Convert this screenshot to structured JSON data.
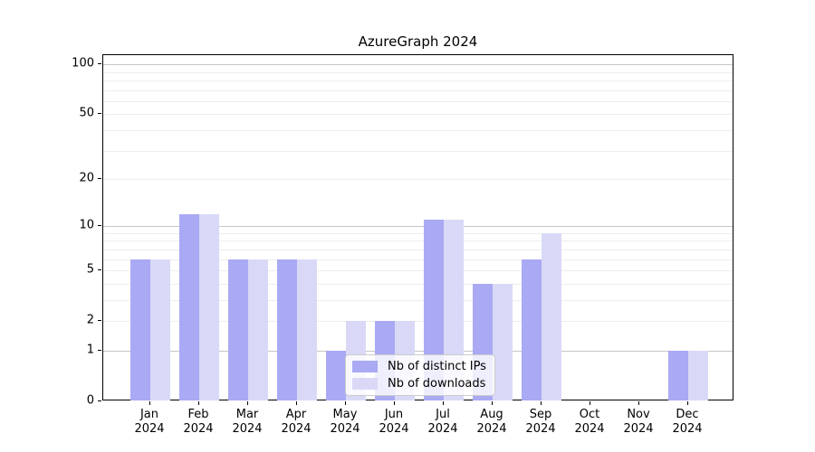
{
  "chart_data": {
    "type": "bar",
    "title": "AzureGraph 2024",
    "categories": [
      "Jan",
      "Feb",
      "Mar",
      "Apr",
      "May",
      "Jun",
      "Jul",
      "Aug",
      "Sep",
      "Oct",
      "Nov",
      "Dec"
    ],
    "category_year": "2024",
    "series": [
      {
        "name": "Nb of distinct IPs",
        "color": "#a9a9f4",
        "values": [
          6,
          12,
          6,
          6,
          1,
          2,
          11,
          4,
          6,
          0,
          0,
          1
        ]
      },
      {
        "name": "Nb of downloads",
        "color": "#d9d9f7",
        "values": [
          6,
          12,
          6,
          6,
          2,
          2,
          11,
          4,
          9,
          0,
          0,
          1
        ]
      }
    ],
    "yscale": "log1p",
    "ylim": [
      0,
      115
    ],
    "yticks": [
      100,
      50,
      20,
      10,
      5,
      2,
      1,
      0
    ],
    "grid": {
      "major_lines": [
        1,
        10,
        100
      ],
      "minor_lines": [
        2,
        3,
        4,
        5,
        6,
        7,
        8,
        9,
        20,
        30,
        40,
        50,
        60,
        70,
        80,
        90
      ]
    },
    "legend": {
      "position": "inside-bottom-left-of-center",
      "entries": [
        "Nb of distinct IPs",
        "Nb of downloads"
      ]
    },
    "colors": {
      "major_grid": "#c6c6c6",
      "minor_grid": "#ededed",
      "spine": "#000000",
      "text": "#000000"
    }
  }
}
